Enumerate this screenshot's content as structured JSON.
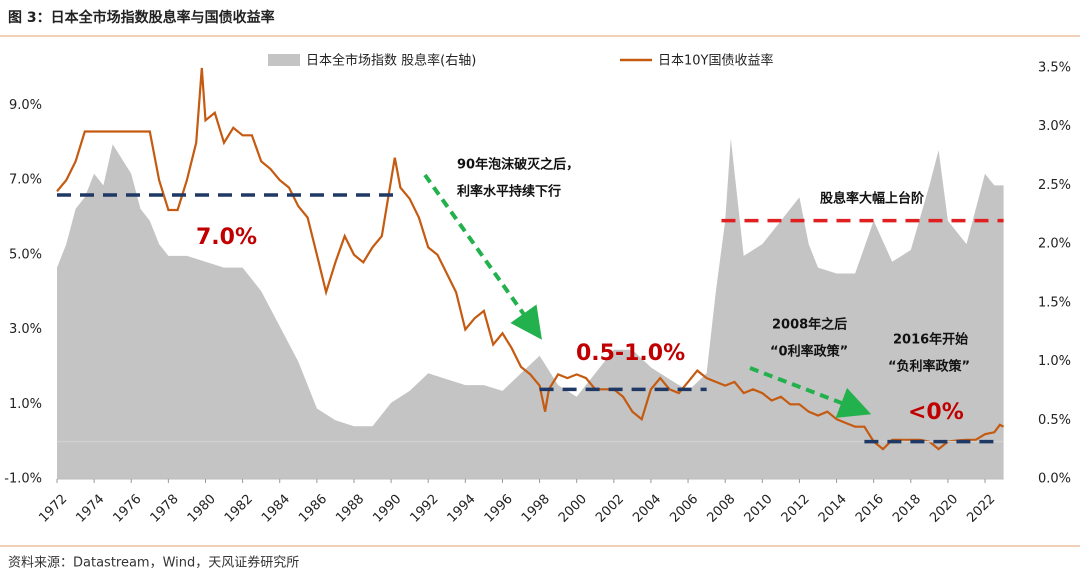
{
  "chart_data": {
    "type": "line",
    "title": "图 3：日本全市场指数股息率与国债收益率",
    "source": "资料来源：Datastream，Wind，天风证券研究所",
    "xlim": [
      1972,
      2023
    ],
    "xticks": [
      1972,
      1974,
      1976,
      1978,
      1980,
      1982,
      1984,
      1986,
      1988,
      1990,
      1992,
      1994,
      1996,
      1998,
      2000,
      2002,
      2004,
      2006,
      2008,
      2010,
      2012,
      2014,
      2016,
      2018,
      2020,
      2022
    ],
    "ylim": [
      -1,
      10
    ],
    "yticks": [
      {
        "value": -1,
        "label": "-1.0%"
      },
      {
        "value": 1,
        "label": "1.0%"
      },
      {
        "value": 3,
        "label": "3.0%"
      },
      {
        "value": 5,
        "label": "5.0%"
      },
      {
        "value": 7,
        "label": "7.0%"
      },
      {
        "value": 9,
        "label": "9.0%"
      }
    ],
    "y2lim": [
      0,
      3.5
    ],
    "y2ticks": [
      {
        "value": 0,
        "label": "0.0%"
      },
      {
        "value": 0.5,
        "label": "0.5%"
      },
      {
        "value": 1,
        "label": "1.0%"
      },
      {
        "value": 1.5,
        "label": "1.5%"
      },
      {
        "value": 2,
        "label": "2.0%"
      },
      {
        "value": 2.5,
        "label": "2.5%"
      },
      {
        "value": 3,
        "label": "3.0%"
      },
      {
        "value": 3.5,
        "label": "3.5%"
      }
    ],
    "series": [
      {
        "name": "日本全市场指数 股息率(右轴)",
        "type": "area",
        "axis": "y2",
        "color": "#c4c4c4",
        "x": [
          1972,
          1972.5,
          1973,
          1973.5,
          1974,
          1974.5,
          1975,
          1976,
          1976.5,
          1977,
          1977.5,
          1978,
          1978.5,
          1979,
          1980,
          1981,
          1982,
          1983,
          1984,
          1985,
          1986,
          1987,
          1988,
          1989,
          1990,
          1991,
          1992,
          1993,
          1994,
          1995,
          1996,
          1997,
          1998,
          1999,
          2000,
          2001,
          2002,
          2003,
          2004,
          2005,
          2006,
          2007,
          2007.5,
          2008,
          2008.3,
          2009,
          2010,
          2011,
          2012,
          2012.5,
          2013,
          2014,
          2015,
          2016,
          2017,
          2018,
          2019,
          2019.5,
          2020,
          2021,
          2022,
          2022.5,
          2023
        ],
        "values": [
          1.8,
          2.0,
          2.3,
          2.4,
          2.6,
          2.5,
          2.85,
          2.6,
          2.3,
          2.2,
          2.0,
          1.9,
          1.9,
          1.9,
          1.85,
          1.8,
          1.8,
          1.6,
          1.3,
          1.0,
          0.6,
          0.5,
          0.45,
          0.45,
          0.65,
          0.75,
          0.9,
          0.85,
          0.8,
          0.8,
          0.75,
          0.9,
          1.05,
          0.8,
          0.7,
          0.9,
          1.1,
          1.1,
          0.95,
          0.85,
          0.75,
          0.9,
          1.6,
          2.2,
          2.9,
          1.9,
          2.0,
          2.2,
          2.4,
          2.0,
          1.8,
          1.75,
          1.75,
          2.2,
          1.85,
          1.95,
          2.5,
          2.8,
          2.2,
          2.0,
          2.6,
          2.5,
          2.5
        ]
      },
      {
        "name": "日本10Y国债收益率",
        "type": "line",
        "axis": "y",
        "color": "#c55a11",
        "x": [
          1972,
          1972.5,
          1973,
          1973.5,
          1974,
          1977,
          1977.5,
          1978,
          1978.5,
          1979,
          1979.5,
          1979.8,
          1980,
          1980.5,
          1981,
          1981.5,
          1982,
          1982.5,
          1983,
          1983.5,
          1984,
          1984.5,
          1985,
          1985.5,
          1986,
          1986.5,
          1987,
          1987.5,
          1988,
          1988.5,
          1989,
          1989.5,
          1990,
          1990.2,
          1990.5,
          1991,
          1991.5,
          1992,
          1992.5,
          1993,
          1993.5,
          1994,
          1994.5,
          1995,
          1995.5,
          1996,
          1996.5,
          1997,
          1997.5,
          1998,
          1998.3,
          1998.5,
          1999,
          1999.5,
          2000,
          2000.5,
          2001,
          2001.5,
          2002,
          2002.5,
          2003,
          2003.5,
          2004,
          2004.5,
          2005,
          2005.5,
          2006,
          2006.5,
          2007,
          2007.5,
          2008,
          2008.5,
          2009,
          2009.5,
          2010,
          2010.5,
          2011,
          2011.5,
          2012,
          2012.5,
          2013,
          2013.5,
          2014,
          2014.5,
          2015,
          2015.5,
          2016,
          2016.5,
          2017,
          2017.5,
          2018,
          2018.5,
          2019,
          2019.5,
          2020,
          2020.5,
          2021,
          2021.5,
          2022,
          2022.5,
          2022.8,
          2023
        ],
        "values": [
          6.7,
          7.0,
          7.5,
          8.3,
          8.3,
          8.3,
          7.0,
          6.2,
          6.2,
          7.0,
          8.0,
          10.0,
          8.6,
          8.8,
          8.0,
          8.4,
          8.2,
          8.2,
          7.5,
          7.3,
          7.0,
          6.8,
          6.3,
          6.0,
          5.0,
          4.0,
          4.8,
          5.5,
          5.0,
          4.8,
          5.2,
          5.5,
          7.0,
          7.6,
          6.8,
          6.5,
          6.0,
          5.2,
          5.0,
          4.5,
          4.0,
          3.0,
          3.3,
          3.5,
          2.6,
          2.9,
          2.5,
          2.0,
          1.8,
          1.5,
          0.8,
          1.4,
          1.8,
          1.7,
          1.8,
          1.7,
          1.4,
          1.4,
          1.4,
          1.2,
          0.8,
          0.6,
          1.4,
          1.7,
          1.4,
          1.3,
          1.6,
          1.9,
          1.7,
          1.6,
          1.5,
          1.6,
          1.3,
          1.4,
          1.3,
          1.1,
          1.2,
          1.0,
          1.0,
          0.8,
          0.7,
          0.8,
          0.6,
          0.5,
          0.4,
          0.4,
          0.0,
          -0.2,
          0.05,
          0.05,
          0.05,
          0.05,
          0.0,
          -0.2,
          0.0,
          0.03,
          0.05,
          0.05,
          0.2,
          0.25,
          0.45,
          0.4
        ]
      }
    ],
    "reference_lines": [
      {
        "value": 6.6,
        "x": [
          1972,
          1990.5
        ],
        "axis": "y",
        "color": "#1f3864"
      },
      {
        "value": 1.4,
        "x": [
          1998,
          2007
        ],
        "axis": "y",
        "color": "#1f3864"
      },
      {
        "value": 0,
        "x": [
          2015.5,
          2022.8
        ],
        "axis": "y",
        "color": "#1f3864"
      },
      {
        "value": 2.2,
        "x": [
          2007.8,
          2023
        ],
        "axis": "y2",
        "color": "#e02020"
      }
    ],
    "annotations": [
      {
        "text": "7.0%",
        "color": "#c00000"
      },
      {
        "text": "0.5-1.0%",
        "color": "#c00000"
      },
      {
        "text": "<0%",
        "color": "#c00000"
      },
      {
        "text": "90年泡沫破灭之后，"
      },
      {
        "text": "利率水平持续下行"
      },
      {
        "text": "股息率大幅上台阶"
      },
      {
        "text": "2008年之后"
      },
      {
        "text": "“0利率政策”"
      },
      {
        "text": "2016年开始"
      },
      {
        "text": "“负利率政策”"
      }
    ]
  }
}
